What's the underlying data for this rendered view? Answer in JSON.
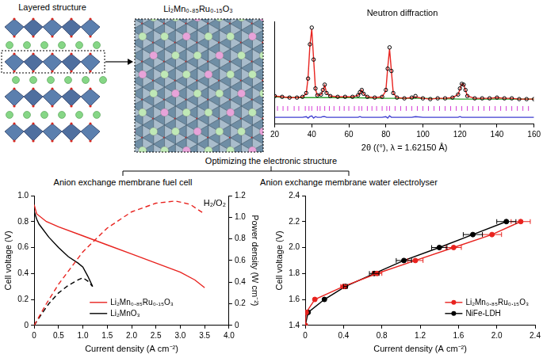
{
  "labels": {
    "layered_structure": "Layered structure",
    "compound": "Li₂Mn₀.₈₅Ru₀.₁₅O₃",
    "optimizing": "Optimizing the electronic structure",
    "fuel_cell": "Anion exchange membrane fuel cell",
    "electrolyser": "Anion exchange membrane water electrolyser"
  },
  "chart_data": [
    {
      "type": "scatter",
      "title": "Neutron diffraction",
      "x_label": "2θ ((°), λ = 1.62150 Å)",
      "xlim": [
        20,
        160
      ],
      "xticks": [
        20,
        40,
        60,
        80,
        100,
        120,
        140,
        160
      ],
      "ylim": [
        -25,
        110
      ],
      "tick_labels": "x",
      "grid": false,
      "series": [
        {
          "type": "scatter",
          "marker": "open_circle",
          "color": "#000000",
          "x": [
            20,
            24,
            28,
            32,
            35,
            37,
            38,
            39,
            40,
            41,
            42,
            43,
            45,
            46,
            47,
            48,
            50,
            54,
            58,
            62,
            65,
            66,
            67,
            68,
            70,
            74,
            78,
            80,
            81,
            82,
            83,
            84,
            86,
            90,
            94,
            96,
            100,
            104,
            108,
            112,
            116,
            119,
            120,
            121,
            122,
            123,
            124,
            128,
            132,
            136,
            140,
            144,
            148,
            152,
            156,
            160
          ],
          "values": [
            12,
            11,
            10,
            10,
            11,
            16,
            35,
            80,
            102,
            60,
            22,
            13,
            14,
            20,
            27,
            16,
            12,
            11,
            11,
            11,
            13,
            17,
            20,
            15,
            11,
            10,
            11,
            20,
            48,
            76,
            45,
            16,
            10,
            9,
            10,
            12,
            9,
            8,
            9,
            9,
            10,
            14,
            22,
            28,
            27,
            20,
            12,
            9,
            9,
            9,
            10,
            9,
            9,
            8,
            8,
            8
          ]
        },
        {
          "type": "line",
          "line_style": "solid",
          "color": "#e8231f",
          "x": [
            20,
            24,
            28,
            32,
            35,
            37,
            38,
            39,
            40,
            41,
            42,
            43,
            45,
            46,
            47,
            48,
            50,
            54,
            58,
            62,
            65,
            66,
            67,
            68,
            70,
            74,
            78,
            80,
            81,
            82,
            83,
            84,
            86,
            90,
            94,
            96,
            100,
            104,
            108,
            112,
            116,
            119,
            120,
            121,
            122,
            123,
            124,
            128,
            132,
            136,
            140,
            144,
            148,
            152,
            156,
            160
          ],
          "values": [
            12,
            11,
            10,
            10,
            11,
            15,
            36,
            79,
            100,
            61,
            21,
            13,
            14,
            19,
            26,
            16,
            12,
            11,
            11,
            11,
            13,
            16,
            20,
            15,
            11,
            10,
            11,
            19,
            49,
            74,
            45,
            16,
            10,
            9,
            10,
            11,
            9,
            8,
            9,
            9,
            10,
            14,
            21,
            28,
            27,
            20,
            12,
            9,
            9,
            9,
            10,
            9,
            9,
            8,
            8,
            8
          ]
        },
        {
          "type": "line",
          "line_style": "solid",
          "color": "#2ca02c",
          "x": [
            20,
            30,
            40,
            60,
            80,
            100,
            120,
            140,
            160
          ],
          "values": [
            11,
            10,
            10,
            10,
            9,
            9,
            8,
            8,
            8
          ]
        },
        {
          "type": "line",
          "line_style": "solid",
          "color": "#3f3fd0",
          "x": [
            20,
            24,
            28,
            32,
            35,
            37,
            38,
            39,
            40,
            41,
            42,
            43,
            45,
            46,
            47,
            48,
            50,
            54,
            58,
            62,
            65,
            66,
            67,
            68,
            70,
            74,
            78,
            80,
            81,
            82,
            83,
            84,
            86,
            90,
            94,
            96,
            100,
            104,
            108,
            112,
            116,
            119,
            120,
            121,
            122,
            123,
            124,
            128,
            132,
            136,
            140,
            144,
            148,
            152,
            156,
            160
          ],
          "values": [
            -16,
            -16,
            -16,
            -16,
            -16,
            -15,
            -17,
            -15,
            -14,
            -17,
            -15,
            -16,
            -16,
            -15,
            -15,
            -16,
            -16,
            -16,
            -16,
            -16,
            -16,
            -15,
            -16,
            -16,
            -16,
            -16,
            -16,
            -15,
            -17,
            -14,
            -16,
            -16,
            -16,
            -16,
            -16,
            -15,
            -16,
            -16,
            -16,
            -16,
            -16,
            -16,
            -15,
            -16,
            -16,
            -16,
            -16,
            -16,
            -16,
            -16,
            -16,
            -16,
            -16,
            -16,
            -16,
            -16
          ]
        },
        {
          "type": "reflection",
          "color": "#d63cd6",
          "x": [
            21.5,
            24.5,
            27,
            30.5,
            33,
            36.5,
            38.5,
            40,
            43,
            44.5,
            47,
            49.5,
            52,
            55,
            57.5,
            60,
            63,
            65.5,
            67,
            70,
            72.5,
            75,
            78,
            80.5,
            82,
            85,
            88,
            91,
            94,
            97,
            100,
            103,
            106,
            109,
            112,
            115,
            118,
            121,
            124,
            127,
            130,
            133,
            136,
            139,
            142,
            145,
            148,
            151,
            154,
            157
          ]
        }
      ]
    },
    {
      "type": "line",
      "x_label": "Current density (A cm⁻²)",
      "y_label": "Cell voltage (V)",
      "y2_label": "Power density (W cm⁻²)",
      "xlim": [
        0,
        4
      ],
      "xticks": [
        0,
        0.5,
        {
          "value": 1,
          "label": "1.0"
        },
        1.5,
        {
          "value": 2,
          "label": "2.0"
        },
        2.5,
        {
          "value": 3,
          "label": "3.0"
        },
        3.5,
        {
          "value": 4,
          "label": "4.0"
        }
      ],
      "ylim": [
        0,
        1
      ],
      "yticks": [
        0,
        0.2,
        0.4,
        0.6,
        0.8,
        {
          "value": 1,
          "label": "1.0"
        }
      ],
      "y2lim": [
        0,
        1.2
      ],
      "y2ticks": [
        0,
        0.2,
        0.4,
        0.6,
        0.8,
        {
          "value": 1,
          "label": "1.0"
        },
        1.2
      ],
      "grid": false,
      "legend": "lower center",
      "annotations": [
        "H₂/O₂"
      ],
      "series": [
        {
          "name": "Li₂Mn₀.₈₅Ru₀.₁₅O₃",
          "color": "#e8231f",
          "line_style": "solid",
          "x": [
            0,
            0.05,
            0.25,
            0.5,
            1.0,
            1.5,
            2.0,
            2.5,
            3.0,
            3.3,
            3.5
          ],
          "values": [
            0.93,
            0.86,
            0.8,
            0.76,
            0.69,
            0.62,
            0.55,
            0.48,
            0.41,
            0.35,
            0.29
          ]
        },
        {
          "color": "#e8231f",
          "line_style": "dashed",
          "axis": "y2",
          "x": [
            0,
            0.25,
            0.5,
            1.0,
            1.5,
            2.0,
            2.5,
            2.9,
            3.2,
            3.5
          ],
          "values": [
            0,
            0.2,
            0.38,
            0.68,
            0.9,
            1.05,
            1.13,
            1.15,
            1.12,
            1.03
          ]
        },
        {
          "name": "Li₂MnO₃",
          "color": "#000000",
          "line_style": "solid",
          "x": [
            0,
            0.05,
            0.1,
            0.3,
            0.5,
            0.7,
            0.9,
            1.0,
            1.1,
            1.2
          ],
          "values": [
            0.88,
            0.82,
            0.78,
            0.68,
            0.6,
            0.53,
            0.48,
            0.45,
            0.38,
            0.3
          ]
        },
        {
          "color": "#000000",
          "line_style": "dashed",
          "axis": "y2",
          "x": [
            0,
            0.1,
            0.3,
            0.5,
            0.7,
            0.9,
            1.0,
            1.1,
            1.2
          ],
          "values": [
            0,
            0.07,
            0.2,
            0.3,
            0.37,
            0.42,
            0.44,
            0.41,
            0.36
          ]
        }
      ]
    },
    {
      "type": "line",
      "x_label": "Current density (A cm⁻²)",
      "y_label": "Cell voltage (V)",
      "xlim": [
        0,
        2.4
      ],
      "xticks": [
        0,
        0.4,
        0.8,
        1.2,
        1.6,
        {
          "value": 2,
          "label": "2.0"
        },
        2.4
      ],
      "ylim": [
        1.4,
        2.4
      ],
      "yticks": [
        1.4,
        1.6,
        1.8,
        {
          "value": 2,
          "label": "2.0"
        },
        2.2,
        2.4
      ],
      "grid": false,
      "legend": "lower right",
      "series": [
        {
          "name": "Li₂Mn₀.₈₅Ru₀.₁₅O₃",
          "color": "#e8231f",
          "marker": "circle",
          "line_style": "solid",
          "x": [
            0,
            0.01,
            0.1,
            0.4,
            0.75,
            1.15,
            1.55,
            1.95,
            2.25
          ],
          "values": [
            1.4,
            1.5,
            1.6,
            1.7,
            1.8,
            1.9,
            2.0,
            2.1,
            2.2
          ],
          "x_err": [
            0,
            0,
            0.01,
            0.03,
            0.05,
            0.08,
            0.08,
            0.1,
            0.1
          ]
        },
        {
          "name": "NiFe-LDH",
          "color": "#000000",
          "marker": "circle",
          "line_style": "solid",
          "x": [
            0,
            0.03,
            0.2,
            0.42,
            0.72,
            1.03,
            1.4,
            1.75,
            2.1
          ],
          "values": [
            1.4,
            1.5,
            1.6,
            1.7,
            1.8,
            1.9,
            2.0,
            2.1,
            2.2
          ],
          "x_err": [
            0,
            0,
            0.01,
            0.02,
            0.05,
            0.08,
            0.08,
            0.1,
            0.1
          ]
        }
      ]
    }
  ]
}
